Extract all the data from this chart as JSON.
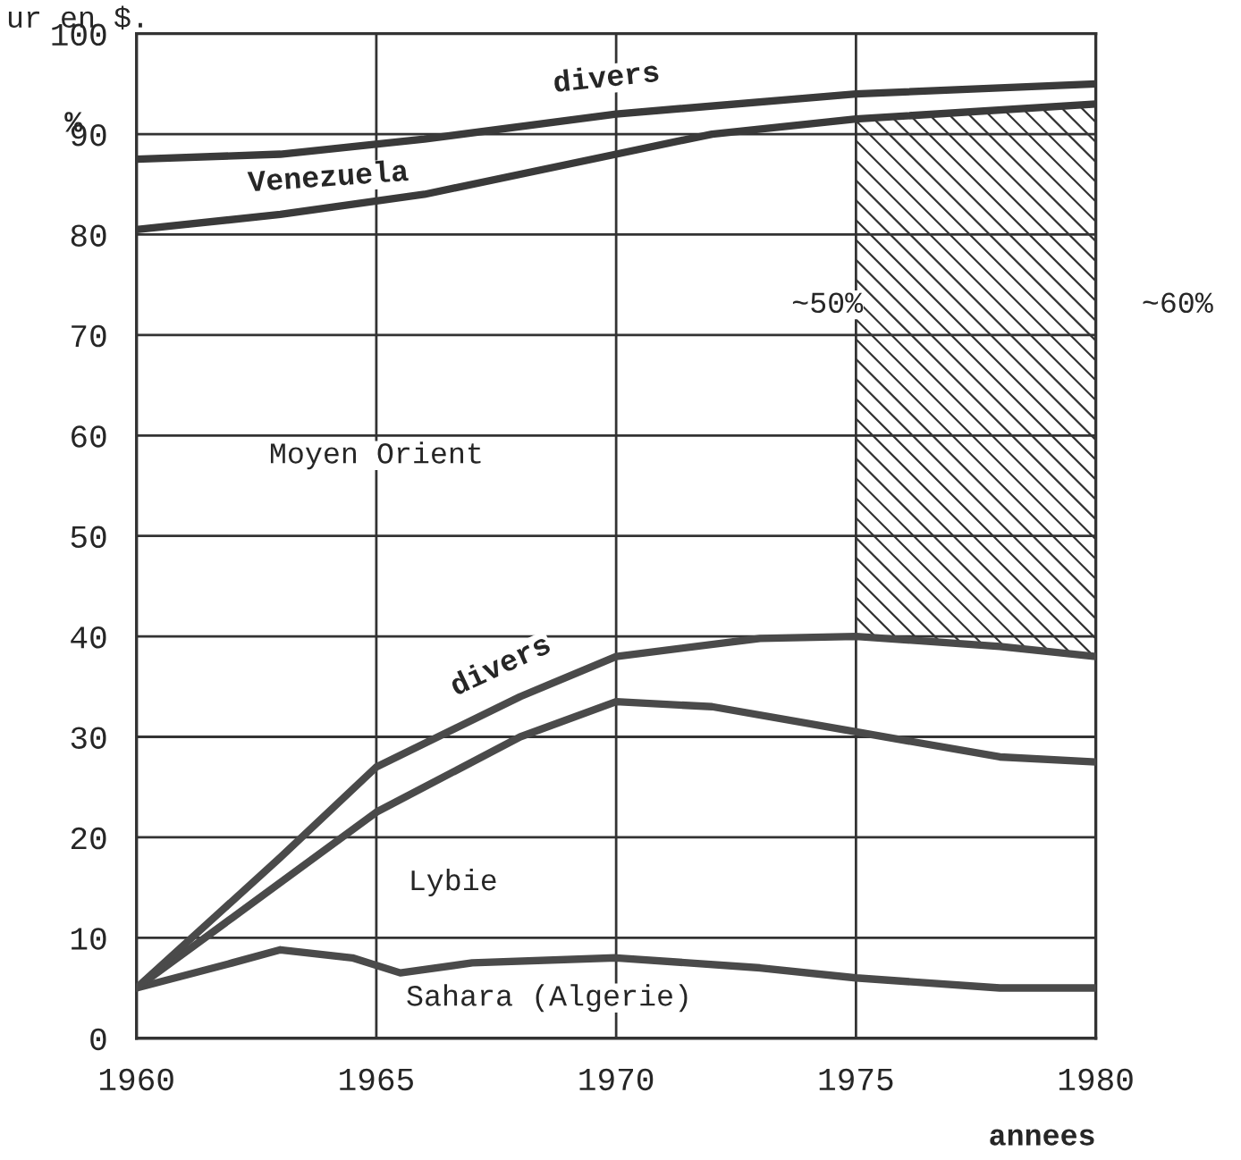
{
  "chart_data": {
    "type": "line",
    "xlabel": "annees",
    "ylabel": "%",
    "series": [
      {
        "color": "#4a4a4a",
        "x": [
          1960,
          1962,
          1963,
          1964.5,
          1965.5,
          1967,
          1970,
          1973,
          1975,
          1978,
          1980
        ],
        "values": [
          5,
          7.5,
          8.8,
          8,
          6.5,
          7.5,
          8,
          7,
          6,
          5,
          5
        ]
      },
      {
        "color": "#4a4a4a",
        "x": [
          1960,
          1962,
          1965,
          1968,
          1970,
          1972,
          1975,
          1978,
          1980
        ],
        "values": [
          5,
          12,
          22.5,
          30,
          33.5,
          33,
          30.5,
          28,
          27.5
        ]
      },
      {
        "color": "#4a4a4a",
        "x": [
          1960,
          1963,
          1965,
          1968,
          1970,
          1973,
          1975,
          1978,
          1980
        ],
        "values": [
          5,
          18,
          27,
          34,
          38,
          39.8,
          40,
          39,
          38
        ]
      },
      {
        "color": "#3a3a3a",
        "x": [
          1960,
          1963,
          1966,
          1970,
          1972,
          1975,
          1980
        ],
        "values": [
          80.5,
          82,
          84,
          88,
          90,
          91.5,
          93
        ]
      },
      {
        "color": "#3a3a3a",
        "x": [
          1960,
          1963,
          1966,
          1970,
          1975,
          1980
        ],
        "values": [
          87.5,
          88,
          89.5,
          92,
          94,
          95
        ]
      }
    ],
    "bands": [
      {
        "axis": "x",
        "from": 1975,
        "to": 1980,
        "color": "#333333"
      }
    ],
    "xlim": [
      1960,
      1980
    ],
    "xticks": [
      1960,
      1965,
      1970,
      1975,
      1980
    ],
    "ylim": [
      0,
      100
    ],
    "yticks": [
      0,
      10,
      20,
      30,
      40,
      50,
      60,
      70,
      80,
      90,
      100
    ],
    "grid": true,
    "marker": "none",
    "line_style": "solid",
    "annotations": [
      "divers",
      "Venezuela",
      "Moyen Orient",
      "~50%",
      "~60%",
      "divers",
      "Lybie",
      "Sahara (Algerie)",
      "ur en $."
    ]
  }
}
